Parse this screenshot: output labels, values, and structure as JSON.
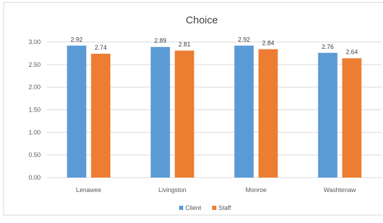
{
  "chart_data": {
    "type": "bar",
    "title": "Choice",
    "xlabel": "",
    "ylabel": "",
    "categories": [
      "Lenawee",
      "Livingston",
      "Monroe",
      "Washtenaw"
    ],
    "series": [
      {
        "name": "Client",
        "values": [
          2.92,
          2.89,
          2.92,
          2.76
        ],
        "labels": [
          "2.92",
          "2.89",
          "2.92",
          "2.76"
        ],
        "color": "#5b9bd5"
      },
      {
        "name": "Staff",
        "values": [
          2.74,
          2.81,
          2.84,
          2.64
        ],
        "labels": [
          "2.74",
          "2.81",
          "2.84",
          "2.64"
        ],
        "color": "#ed7d31"
      }
    ],
    "ylim": [
      0,
      3.0
    ],
    "yticks": [
      "0.00",
      "0.50",
      "1.00",
      "1.50",
      "2.00",
      "2.50",
      "3.00"
    ],
    "grid": true,
    "legend_position": "bottom",
    "gridline_color": "#d9d9d9",
    "text_color": "#595959"
  }
}
